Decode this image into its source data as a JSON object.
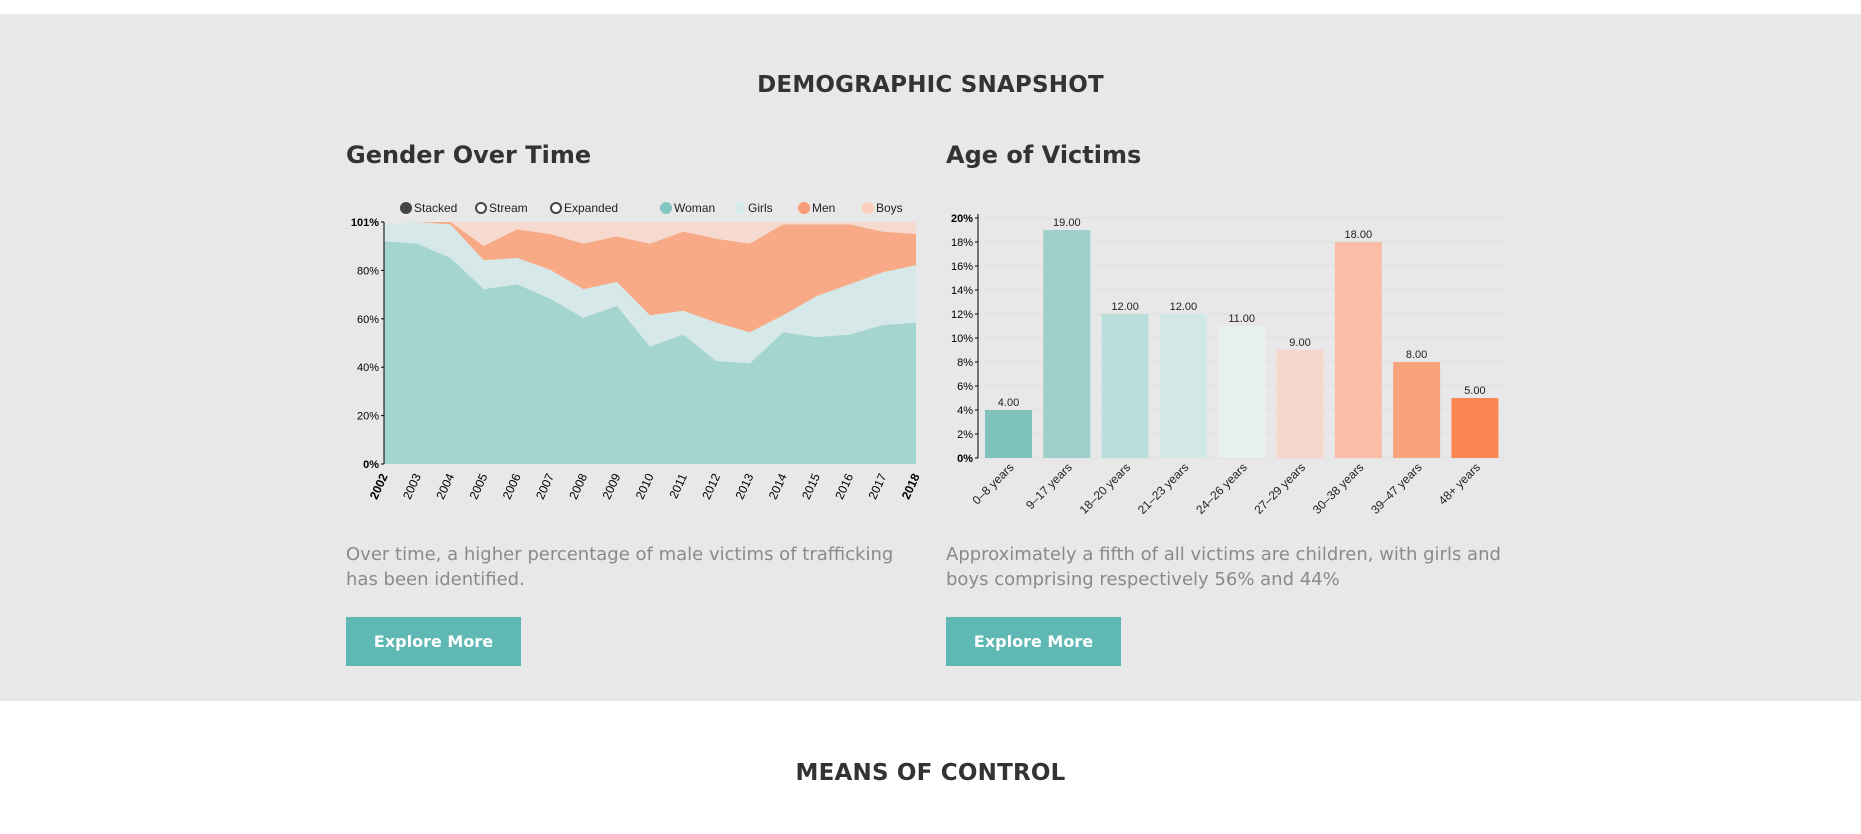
{
  "sections": {
    "snapshot_title": "DEMOGRAPHIC SNAPSHOT",
    "next_title": "MEANS OF CONTROL"
  },
  "gender_panel": {
    "title": "Gender Over Time",
    "caption": "Over time, a higher percentage of male victims of trafficking has been identified.",
    "button": "Explore More",
    "modes": [
      {
        "label": "Stacked",
        "selected": true
      },
      {
        "label": "Stream",
        "selected": false
      },
      {
        "label": "Expanded",
        "selected": false
      }
    ]
  },
  "age_panel": {
    "title": "Age of Victims",
    "caption": "Approximately a fifth of all victims are children, with girls and boys comprising respectively 56% and 44%",
    "button": "Explore More"
  },
  "chart_data": [
    {
      "type": "area",
      "stacked": true,
      "x": [
        "2002",
        "2003",
        "2004",
        "2005",
        "2006",
        "2007",
        "2008",
        "2009",
        "2010",
        "2011",
        "2012",
        "2013",
        "2014",
        "2015",
        "2016",
        "2017",
        "2018"
      ],
      "y_ticks": [
        "0%",
        "20%",
        "40%",
        "60%",
        "80%",
        "101%"
      ],
      "ylim": [
        0,
        101
      ],
      "legend_position": "top",
      "series": [
        {
          "name": "Woman",
          "color": "#7fc7c0",
          "fill": "#a5d5d0",
          "values": [
            93,
            92,
            86,
            73,
            75,
            69,
            61,
            66,
            49,
            54,
            43,
            42,
            55,
            53,
            54,
            58,
            59
          ]
        },
        {
          "name": "Girls",
          "color": "#d6ecea",
          "fill": "#d6e8e7",
          "values": [
            7,
            9,
            14,
            12,
            11,
            12,
            12,
            10,
            13,
            10,
            16,
            13,
            7,
            17,
            21,
            22,
            24
          ]
        },
        {
          "name": "Men",
          "color": "#f89d76",
          "fill": "#f8aa87",
          "values": [
            0,
            0,
            1,
            6,
            12,
            15,
            19,
            19,
            30,
            33,
            35,
            37,
            38,
            30,
            25,
            17,
            13
          ]
        },
        {
          "name": "Boys",
          "color": "#f9cfbe",
          "fill": "#f6d9cf",
          "values": [
            0,
            0,
            0,
            10,
            3,
            5,
            9,
            6,
            9,
            4,
            7,
            9,
            1,
            1,
            1,
            4,
            5
          ]
        }
      ]
    },
    {
      "type": "bar",
      "categories": [
        "0–8 years",
        "9–17 years",
        "18–20 years",
        "21–23 years",
        "24–26 years",
        "27–29 years",
        "30–38 years",
        "39–47 years",
        "48+ years"
      ],
      "values": [
        4,
        19,
        12,
        12,
        11,
        9,
        18,
        8,
        5
      ],
      "value_labels": [
        "4.00",
        "19.00",
        "12.00",
        "12.00",
        "11.00",
        "9.00",
        "18.00",
        "8.00",
        "5.00"
      ],
      "colors": [
        "#7fc3bc",
        "#9fd0cb",
        "#b9dfdc",
        "#d1e8e6",
        "#e5f0ef",
        "#f6d7cc",
        "#f9bea5",
        "#f8a37c",
        "#fb8754"
      ],
      "y_ticks": [
        "0%",
        "2%",
        "4%",
        "6%",
        "8%",
        "10%",
        "12%",
        "14%",
        "16%",
        "18%",
        "20%"
      ],
      "ylim": [
        0,
        20
      ]
    }
  ]
}
